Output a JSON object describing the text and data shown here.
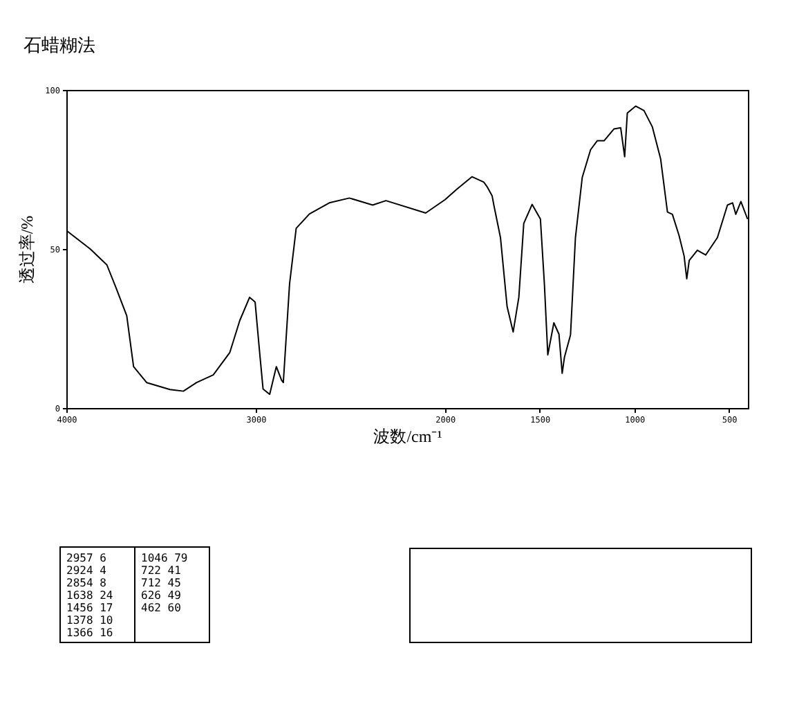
{
  "chart_data": {
    "type": "line",
    "title": "石蜡糊法",
    "xlabel": "波数/cm⁻¹",
    "ylabel": "透过率/%",
    "x": [
      4000,
      3874,
      3786,
      3737,
      3681,
      3645,
      3576,
      3453,
      3382,
      3312,
      3224,
      3137,
      3084,
      3032,
      3003,
      2979,
      2961,
      2926,
      2891,
      2863,
      2854,
      2821,
      2786,
      2716,
      2611,
      2505,
      2382,
      2312,
      2102,
      2000,
      1937,
      1857,
      1795,
      1778,
      1751,
      1742,
      1707,
      1672,
      1640,
      1610,
      1584,
      1540,
      1496,
      1475,
      1457,
      1425,
      1398,
      1381,
      1369,
      1337,
      1311,
      1275,
      1231,
      1196,
      1160,
      1108,
      1072,
      1051,
      1037,
      993,
      949,
      905,
      861,
      825,
      799,
      764,
      737,
      723,
      710,
      667,
      623,
      561,
      508,
      481,
      464,
      437,
      402
    ],
    "series": [
      {
        "color": "#000000",
        "values": [
          55.8,
          50,
          45,
          37.7,
          29,
          13,
          8,
          5.8,
          5.3,
          8,
          10.4,
          17.4,
          27.5,
          34.8,
          33.3,
          17.4,
          6,
          4.3,
          13,
          8.7,
          8,
          39,
          56.5,
          61,
          64.5,
          66,
          63.8,
          65.2,
          61.3,
          65.5,
          68.8,
          72.7,
          71,
          69.6,
          66.7,
          63.8,
          53.6,
          31.9,
          23.9,
          34.8,
          58,
          64,
          59.4,
          39,
          16.7,
          26.8,
          23.2,
          10.9,
          16,
          23,
          53.6,
          72.5,
          81.2,
          84,
          84,
          87.7,
          88.1,
          79,
          92.7,
          94.9,
          93.5,
          88.4,
          78.3,
          61.6,
          60.9,
          54.3,
          47.8,
          40.6,
          46.4,
          49.6,
          48.1,
          53.6,
          63.8,
          64.5,
          60.9,
          64.9,
          59.4
        ]
      }
    ],
    "xlim": [
      4000,
      400
    ],
    "xticks": [
      4000,
      3000,
      2000,
      1500,
      1000,
      500
    ],
    "ylim": [
      0,
      100
    ],
    "yticks": [
      0,
      50,
      100
    ],
    "grid": false,
    "legend": false,
    "marker": "none",
    "line_style": "solid",
    "annotations": [
      "2957 6",
      "2924 4",
      "2854 8",
      "1638 24",
      "1456 17",
      "1378 10",
      "1366 16",
      "1046 79",
      "722 41",
      "712 45",
      "626 49",
      "462 60"
    ]
  }
}
